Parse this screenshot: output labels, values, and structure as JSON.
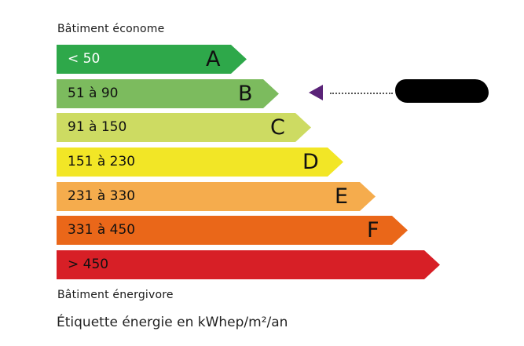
{
  "header_label": "Bâtiment économe",
  "footer_label": "Bâtiment énergivore",
  "caption": "Étiquette énergie en kWhep/m²/an",
  "classes": [
    {
      "range": "< 50",
      "letter": "A",
      "color": "#2ea84a",
      "range_color": "#ffffff"
    },
    {
      "range": "51 à 90",
      "letter": "B",
      "color": "#7cbb5e"
    },
    {
      "range": "91 à 150",
      "letter": "C",
      "color": "#cddb62"
    },
    {
      "range": "151 à 230",
      "letter": "D",
      "color": "#f2e626"
    },
    {
      "range": "231 à 330",
      "letter": "E",
      "color": "#f5ac4d"
    },
    {
      "range": "331 à 450",
      "letter": "F",
      "color": "#ea6719"
    },
    {
      "range": "> 450",
      "letter": "",
      "color": "#d71f26"
    }
  ],
  "indicator": {
    "class": "B",
    "color": "#5a2378",
    "value_redacted": true
  }
}
